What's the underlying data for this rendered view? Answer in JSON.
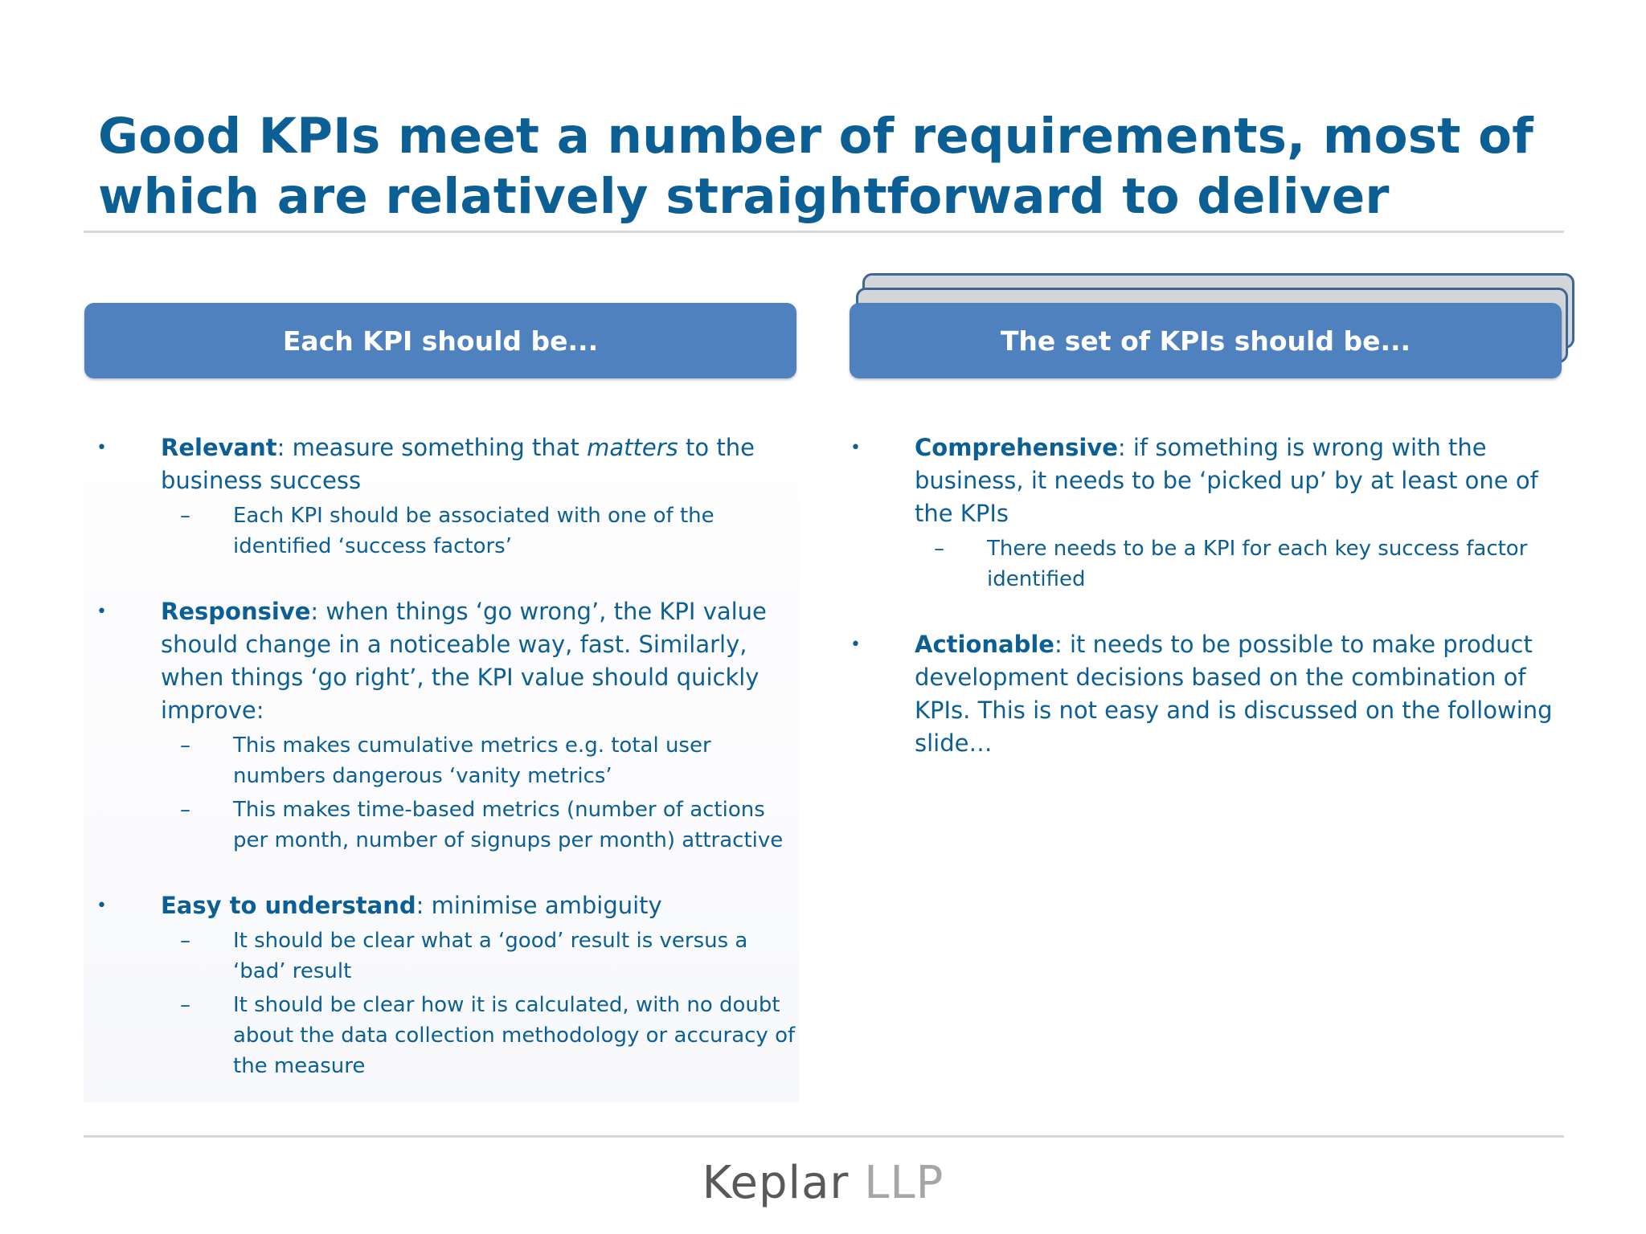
{
  "title": "Good KPIs meet a number of requirements, most of which are relatively straightforward to deliver",
  "left": {
    "header": "Each KPI should be...",
    "items": [
      {
        "term": "Relevant",
        "text_before": ": measure something that ",
        "emphasis": "matters",
        "text_after": " to the business success",
        "subs": [
          "Each KPI should be associated with one of the identified ‘success factors’"
        ]
      },
      {
        "term": "Responsive",
        "text": ": when things ‘go wrong’, the KPI value should change in a noticeable way, fast. Similarly, when things ‘go right’, the KPI value should quickly improve:",
        "subs": [
          "This makes cumulative metrics e.g. total user numbers dangerous ‘vanity metrics’",
          "This makes time-based metrics (number of actions per month, number of signups per month) attractive"
        ]
      },
      {
        "term": "Easy to understand",
        "text": ": minimise ambiguity",
        "subs": [
          "It should be clear what a ‘good’ result is versus a ‘bad’ result",
          "It should be clear how it is calculated, with no doubt about the data collection methodology or accuracy of the measure"
        ]
      }
    ]
  },
  "right": {
    "header": "The set of KPIs should be...",
    "items": [
      {
        "term": "Comprehensive",
        "text": ": if something is wrong with the business, it needs to be ‘picked up’ by at least one of the KPIs",
        "subs": [
          "There needs to be a KPI for each key success factor identified"
        ]
      },
      {
        "term": "Actionable",
        "text": ": it needs to be possible to make product development decisions based on the combination of KPIs. This is not easy and is discussed on the following slide…",
        "subs": []
      }
    ]
  },
  "bullet_glyph": "•",
  "dash_glyph": "–",
  "footer": {
    "logo_part1": "Keplar",
    "logo_part2": "LLP"
  },
  "colors": {
    "title": "#0b5f95",
    "header_fill": "#4e81bd",
    "stack_fill": "#d3d5d8",
    "stack_border": "#3d6795",
    "rule": "#d9d9d9",
    "logo_dark": "#595959",
    "logo_light": "#a6a6a6"
  }
}
